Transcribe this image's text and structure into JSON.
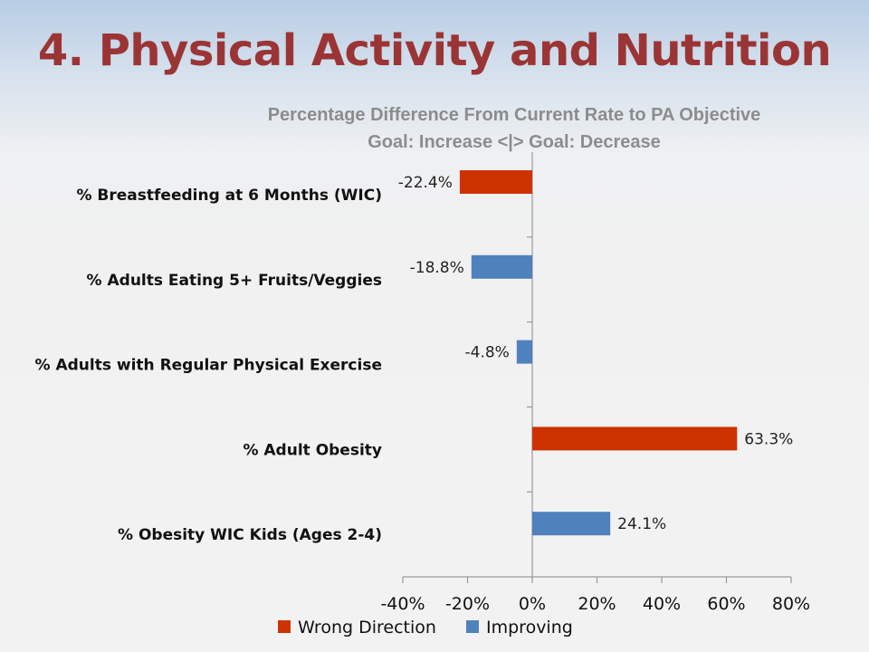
{
  "slide": {
    "title": "4. Physical Activity and Nutrition",
    "subtitle_line1": "Percentage Difference From Current Rate to PA Objective",
    "subtitle_line2": "Goal: Increase  <|>  Goal:  Decrease"
  },
  "chart_data": {
    "type": "bar",
    "orientation": "horizontal",
    "categories": [
      "% Breastfeeding at 6 Months (WIC)",
      "% Adults Eating 5+ Fruits/Veggies",
      "% Adults with Regular Physical Exercise",
      "% Adult Obesity",
      "% Obesity WIC Kids (Ages 2-4)"
    ],
    "series": [
      {
        "name": "Wrong Direction",
        "color": "#cc3300",
        "values": [
          -22.4,
          null,
          null,
          63.3,
          null
        ]
      },
      {
        "name": "Improving",
        "color": "#4f81bd",
        "values": [
          null,
          -18.8,
          -4.8,
          null,
          24.1
        ]
      }
    ],
    "value_labels": [
      "-22.4%",
      "-18.8%",
      "-4.8%",
      "63.3%",
      "24.1%"
    ],
    "xlim": [
      -40,
      80
    ],
    "xticks": [
      -40,
      -20,
      0,
      20,
      40,
      60,
      80
    ],
    "xtick_labels": [
      "-40%",
      "-20%",
      "0%",
      "20%",
      "40%",
      "60%",
      "80%"
    ],
    "grid": false,
    "legend_position": "bottom"
  }
}
